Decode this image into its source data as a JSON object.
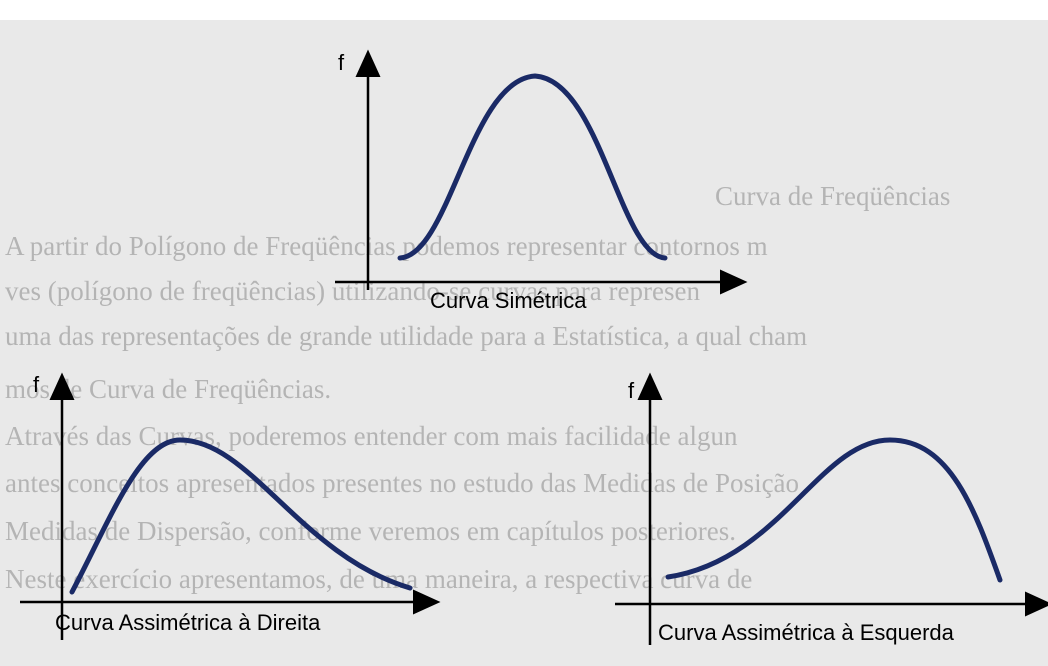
{
  "background_text": [
    "Curva de Freqüências",
    "A partir do Polígono de Freqüências podemos representar contornos m",
    "ves (polígono de freqüências) utilizando-se curvas para represen",
    "uma das representações de grande utilidade para a Estatística, a qual cham",
    "mos de Curva de Freqüências.",
    "Através das Curvas, poderemos entender com mais facilidade algun",
    "antes conceitos apresentados presentes no estudo das Medidas de Posição",
    "Medidas de Dispersão, conforme veremos em capítulos posteriores.",
    "Neste exercício apresentamos, de uma maneira, a respectiva curva de"
  ],
  "diagrams": [
    {
      "axis_label": "f",
      "caption": "Curva Simétrica"
    },
    {
      "axis_label": "f",
      "caption": "Curva Assimétrica à Direita"
    },
    {
      "axis_label": "f",
      "caption": "Curva Assimétrica à Esquerda"
    }
  ]
}
